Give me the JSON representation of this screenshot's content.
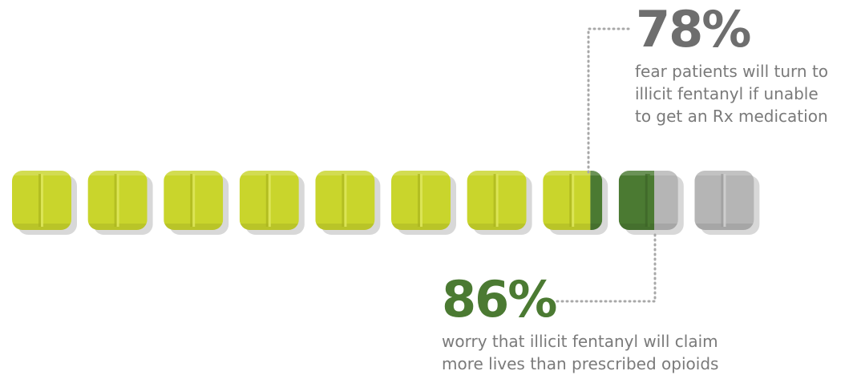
{
  "chart_data": {
    "type": "pictograph",
    "total_icons": 10,
    "stats": [
      {
        "value": 78,
        "value_label": "78%",
        "text_lines": [
          "fear patients will turn to",
          "illicit fentanyl if unable",
          "to get an Rx medication"
        ]
      },
      {
        "value": 86,
        "value_label": "86%",
        "text_lines": [
          "worry that illicit fentanyl will claim",
          "more lives than prescribed opioids"
        ]
      }
    ]
  },
  "colors": {
    "lime": "#c9d52c",
    "lime_light": "#dde55a",
    "lime_dark": "#a9b41c",
    "green": "#4b7a32",
    "green_dark": "#3c6427",
    "gray": "#b5b5b5",
    "gray_light": "#cfcfcf",
    "gray_dark": "#9a9a9a",
    "shadow": "#d8d8d8",
    "dots": "#a8a8a8"
  }
}
